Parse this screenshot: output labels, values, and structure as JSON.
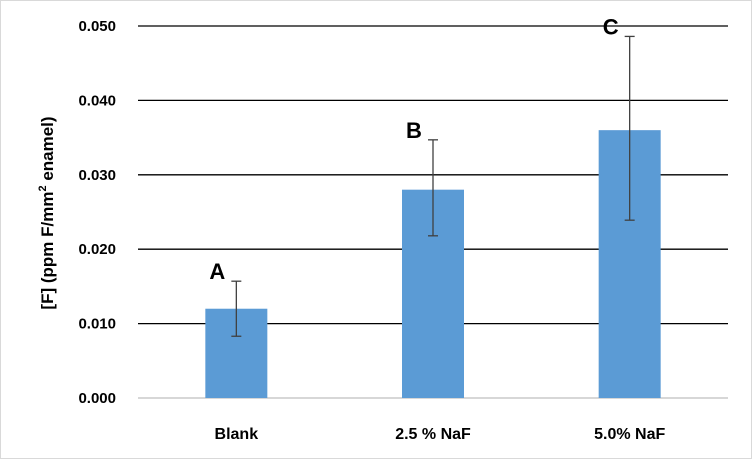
{
  "chart_data": {
    "type": "bar",
    "categories": [
      "Blank",
      "2.5 % NaF",
      "5.0% NaF"
    ],
    "values": [
      0.012,
      0.028,
      0.036
    ],
    "error_low": [
      0.0083,
      0.0218,
      0.0239
    ],
    "error_high": [
      0.0157,
      0.0347,
      0.0486
    ],
    "bar_letters": [
      "A",
      "B",
      "C"
    ],
    "ylabel": {
      "prefix": "[F] (ppm F/mm",
      "superscript": "2",
      "suffix": " enamel)"
    },
    "ylim": [
      0,
      0.05
    ],
    "y_ticks": [
      "0.000",
      "0.010",
      "0.020",
      "0.030",
      "0.040",
      "0.050"
    ],
    "grid": true,
    "legend": "none",
    "colors": {
      "bar": "#5b9bd5",
      "grid": "#000000",
      "error_bar": "#404040"
    }
  }
}
